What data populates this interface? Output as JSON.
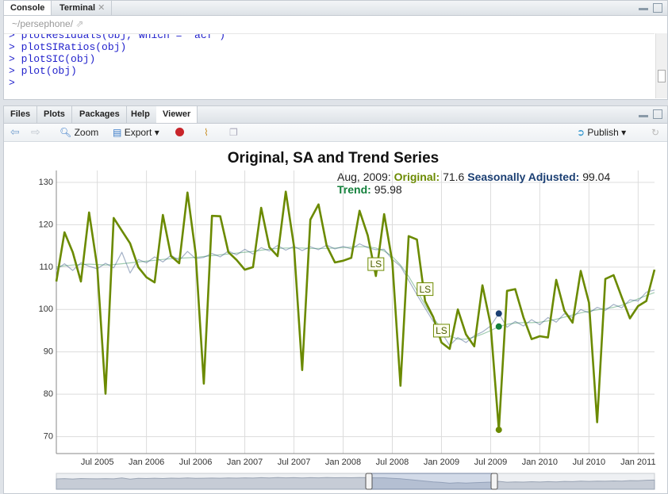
{
  "console": {
    "tabs": [
      "Console",
      "Terminal"
    ],
    "path": "~/persephone/",
    "prompt": ">",
    "lines": [
      "plotResiduals(obj, which = \"acf\")",
      "plotSIRatios(obj)",
      "plotSIC(obj)",
      "plot(obj)",
      ""
    ]
  },
  "viewer": {
    "tabs": [
      "Files",
      "Plots",
      "Packages",
      "Help",
      "Viewer"
    ],
    "active_tab": "Viewer",
    "toolbar": {
      "zoom": "Zoom",
      "export": "Export",
      "publish": "Publish"
    }
  },
  "chart_data": {
    "type": "line",
    "title": "Original, SA and Trend Series",
    "x": [
      "2005-02",
      "2005-03",
      "2005-04",
      "2005-05",
      "2005-06",
      "2005-07",
      "2005-08",
      "2005-09",
      "2005-10",
      "2005-11",
      "2005-12",
      "2006-01",
      "2006-02",
      "2006-03",
      "2006-04",
      "2006-05",
      "2006-06",
      "2006-07",
      "2006-08",
      "2006-09",
      "2006-10",
      "2006-11",
      "2006-12",
      "2007-01",
      "2007-02",
      "2007-03",
      "2007-04",
      "2007-05",
      "2007-06",
      "2007-07",
      "2007-08",
      "2007-09",
      "2007-10",
      "2007-11",
      "2007-12",
      "2008-01",
      "2008-02",
      "2008-03",
      "2008-04",
      "2008-05",
      "2008-06",
      "2008-07",
      "2008-08",
      "2008-09",
      "2008-10",
      "2008-11",
      "2008-12",
      "2009-01",
      "2009-02",
      "2009-03",
      "2009-04",
      "2009-05",
      "2009-06",
      "2009-07",
      "2009-08",
      "2009-09",
      "2009-10",
      "2009-11",
      "2009-12",
      "2010-01",
      "2010-02",
      "2010-03",
      "2010-04",
      "2010-05",
      "2010-06",
      "2010-07",
      "2010-08",
      "2010-09",
      "2010-10",
      "2010-11",
      "2010-12",
      "2011-01",
      "2011-02",
      "2011-03"
    ],
    "series": [
      {
        "name": "Original",
        "color": "#6b8a00",
        "width": 2.6,
        "opacity": 1,
        "values": [
          106.6,
          118.2,
          113.5,
          106.6,
          122.9,
          110,
          80.1,
          121.6,
          118.6,
          115.6,
          110,
          107.6,
          106.4,
          122.3,
          112.6,
          110.9,
          127.6,
          113.2,
          82.5,
          122.1,
          122,
          113.5,
          111.7,
          109.4,
          110,
          124,
          114.7,
          112.6,
          127.8,
          115,
          85.7,
          121.2,
          124.8,
          115,
          111.1,
          111.5,
          112.2,
          123.3,
          117.5,
          107.9,
          122.5,
          111.3,
          82,
          117.3,
          116.5,
          102,
          98.2,
          92.2,
          90.7,
          100,
          94.1,
          91.3,
          105.7,
          96.4,
          71.6,
          104.4,
          104.8,
          98.2,
          93,
          93.7,
          93.4,
          107,
          99.7,
          96.9,
          109.1,
          101.6,
          73.4,
          107.2,
          108.1,
          102.9,
          97.9,
          100.8,
          102,
          109.4
        ]
      },
      {
        "name": "Seasonally Adjusted",
        "color": "#1b3f73",
        "width": 1.2,
        "opacity": 0.4,
        "values": [
          109.5,
          110.8,
          109.2,
          111,
          110.2,
          109.6,
          110.9,
          109.8,
          113.5,
          108.6,
          111.8,
          111,
          112.4,
          111.2,
          112.8,
          111.6,
          113.7,
          112,
          112.3,
          113.2,
          112.4,
          113.8,
          112.9,
          114.2,
          113.1,
          114.6,
          113.8,
          115.1,
          114,
          114.9,
          113.9,
          114.8,
          114.1,
          115.2,
          114.3,
          114.9,
          114.3,
          115.5,
          114.6,
          114.1,
          114.2,
          111.8,
          110.2,
          106.9,
          103.5,
          100.3,
          97.2,
          94.6,
          91.5,
          93.4,
          92.2,
          93.8,
          94.7,
          96.1,
          99.04,
          95.8,
          97.2,
          96.1,
          97.6,
          96.4,
          98.1,
          97,
          99,
          98.1,
          100,
          99.2,
          100.5,
          99.8,
          101.2,
          100.4,
          102.3,
          102,
          104.1,
          104.6
        ]
      },
      {
        "name": "Trend",
        "color": "#13803b",
        "width": 1.2,
        "opacity": 0.4,
        "values": [
          110,
          110.3,
          110.5,
          110.6,
          110.7,
          110.6,
          110.5,
          110.6,
          110.8,
          111,
          111.2,
          111.4,
          111.6,
          111.8,
          112,
          112.1,
          112.2,
          112.3,
          112.5,
          112.7,
          112.9,
          113.1,
          113.3,
          113.5,
          113.7,
          114,
          114.2,
          114.4,
          114.5,
          114.5,
          114.5,
          114.4,
          114.4,
          114.4,
          114.5,
          114.6,
          114.7,
          114.8,
          114.8,
          114.5,
          113.8,
          112.5,
          110.5,
          107.8,
          104.5,
          101,
          98,
          95.5,
          93.8,
          93,
          93,
          93.5,
          94.2,
          95,
          95.98,
          96.5,
          96.8,
          96.9,
          96.9,
          97,
          97.3,
          97.7,
          98.2,
          98.7,
          99.2,
          99.6,
          99.9,
          100.2,
          100.5,
          101,
          101.7,
          102.5,
          103.3,
          104
        ]
      }
    ],
    "xlim": [
      "2005-02",
      "2011-03"
    ],
    "xticks": [
      {
        "value": "2005-07",
        "label": "Jul 2005"
      },
      {
        "value": "2006-01",
        "label": "Jan 2006"
      },
      {
        "value": "2006-07",
        "label": "Jul 2006"
      },
      {
        "value": "2007-01",
        "label": "Jan 2007"
      },
      {
        "value": "2007-07",
        "label": "Jul 2007"
      },
      {
        "value": "2008-01",
        "label": "Jan 2008"
      },
      {
        "value": "2008-07",
        "label": "Jul 2008"
      },
      {
        "value": "2009-01",
        "label": "Jan 2009"
      },
      {
        "value": "2009-07",
        "label": "Jul 2009"
      },
      {
        "value": "2010-01",
        "label": "Jan 2010"
      },
      {
        "value": "2010-07",
        "label": "Jul 2010"
      },
      {
        "value": "2011-01",
        "label": "Jan 2011"
      }
    ],
    "ylim": [
      66,
      132.8
    ],
    "yticks": [
      70,
      80,
      90,
      100,
      110,
      120,
      130
    ],
    "grid": true,
    "annotations": [
      {
        "x": "2008-05",
        "text": "LS"
      },
      {
        "x": "2008-11",
        "text": "LS"
      },
      {
        "x": "2009-01",
        "text": "LS"
      }
    ],
    "highlight": {
      "index": 54,
      "label": "Aug, 2009"
    }
  }
}
